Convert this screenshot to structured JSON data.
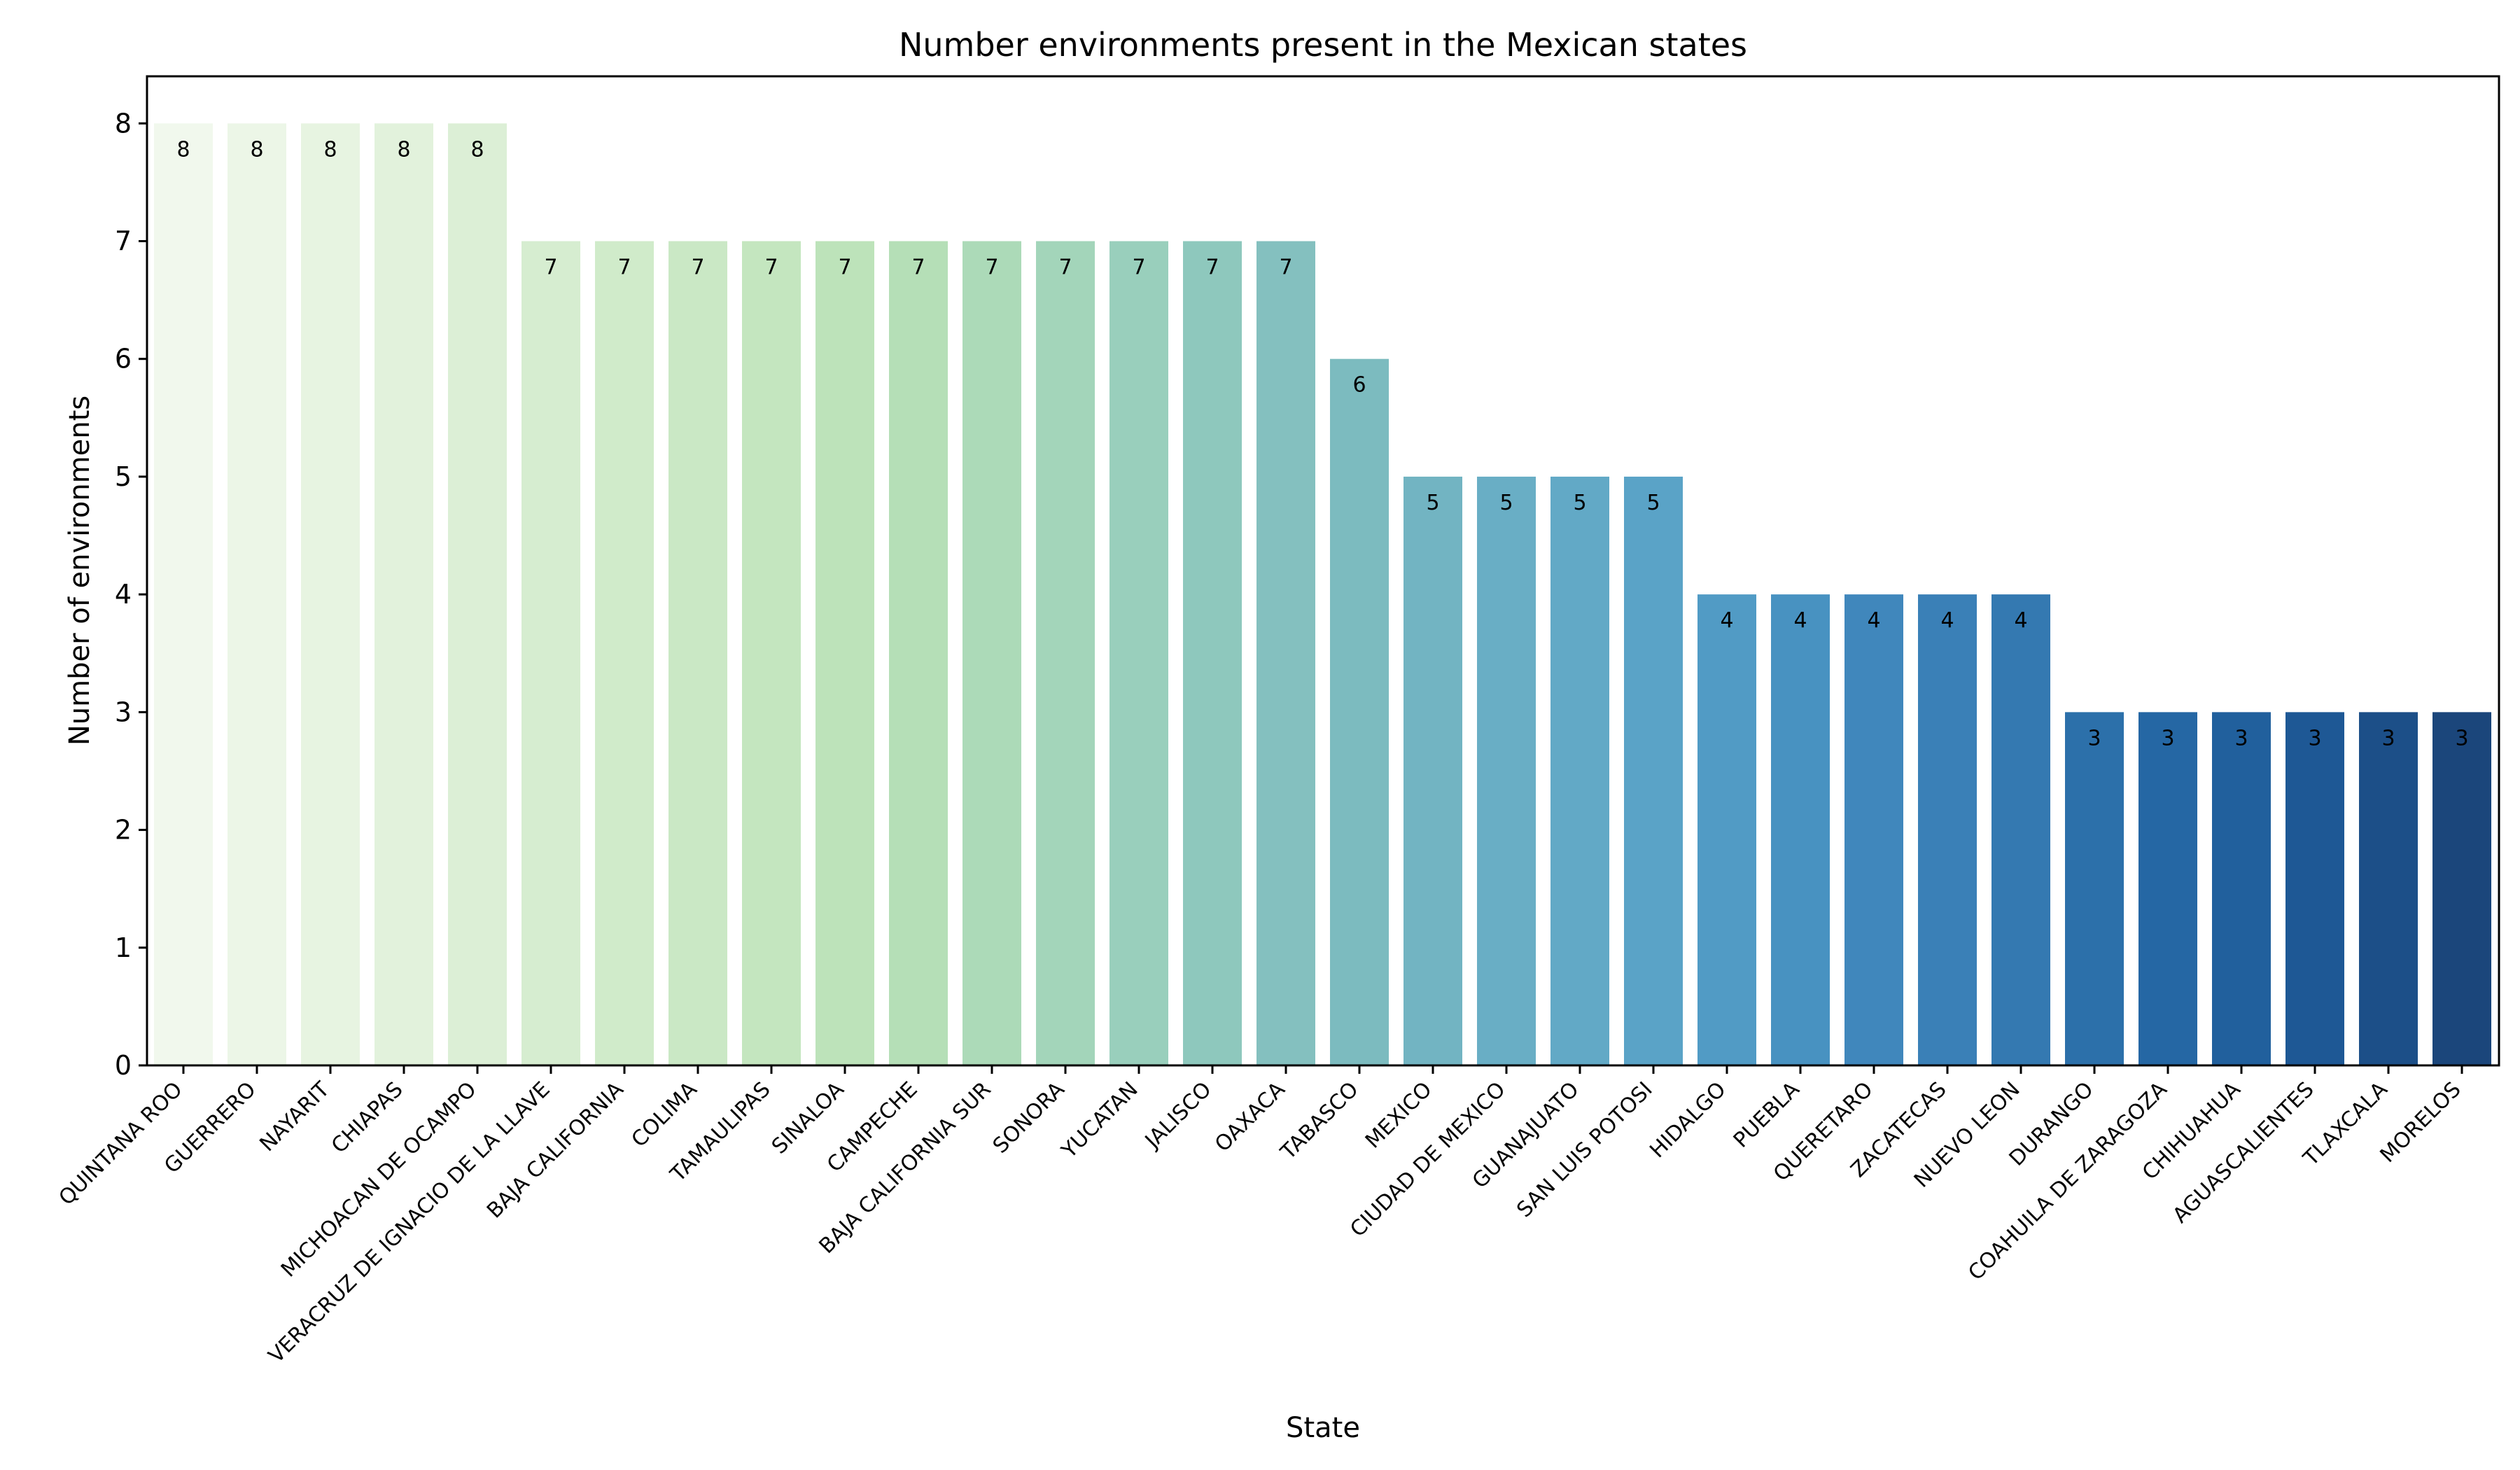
{
  "chart_data": {
    "type": "bar",
    "title": "Number environments present in the Mexican states",
    "xlabel": "State",
    "ylabel": "Number of environments",
    "ylim": [
      0,
      8.4
    ],
    "yticks": [
      0,
      1,
      2,
      3,
      4,
      5,
      6,
      7,
      8
    ],
    "grid": false,
    "legend": "none",
    "categories": [
      "QUINTANA ROO",
      "GUERRERO",
      "NAYARIT",
      "CHIAPAS",
      "MICHOACAN DE OCAMPO",
      "VERACRUZ DE IGNACIO DE LA LLAVE",
      "BAJA CALIFORNIA",
      "COLIMA",
      "TAMAULIPAS",
      "SINALOA",
      "CAMPECHE",
      "BAJA CALIFORNIA SUR",
      "SONORA",
      "YUCATAN",
      "JALISCO",
      "OAXACA",
      "TABASCO",
      "MEXICO",
      "CIUDAD DE MEXICO",
      "GUANAJUATO",
      "SAN LUIS POTOSI",
      "HIDALGO",
      "PUEBLA",
      "QUERETARO",
      "ZACATECAS",
      "NUEVO LEON",
      "DURANGO",
      "COAHUILA DE ZARAGOZA",
      "CHIHUAHUA",
      "AGUASCALIENTES",
      "TLAXCALA",
      "MORELOS"
    ],
    "values": [
      8,
      8,
      8,
      8,
      8,
      7,
      7,
      7,
      7,
      7,
      7,
      7,
      7,
      7,
      7,
      7,
      6,
      5,
      5,
      5,
      5,
      4,
      4,
      4,
      4,
      4,
      3,
      3,
      3,
      3,
      3,
      3
    ],
    "data_labels": [
      "8",
      "8",
      "8",
      "8",
      "8",
      "7",
      "7",
      "7",
      "7",
      "7",
      "7",
      "7",
      "7",
      "7",
      "7",
      "7",
      "6",
      "5",
      "5",
      "5",
      "5",
      "4",
      "4",
      "4",
      "4",
      "4",
      "3",
      "3",
      "3",
      "3",
      "3",
      "3"
    ],
    "colors": [
      "#f1f8ed",
      "#ecf6e7",
      "#e7f4e1",
      "#e2f2dc",
      "#dcefd6",
      "#d6edd0",
      "#d0ebca",
      "#cae8c5",
      "#c4e6bf",
      "#bde3ba",
      "#b5dfb7",
      "#acdab8",
      "#a3d5ba",
      "#99cfbc",
      "#8ec8bd",
      "#84c0bf",
      "#7cbbbf",
      "#72b4c2",
      "#69aec5",
      "#62a9c6",
      "#5aa3c7",
      "#519bc5",
      "#4892c1",
      "#4087bc",
      "#3a80b7",
      "#3479b1",
      "#2c70aa",
      "#2567a4",
      "#21609d",
      "#1e5895",
      "#1c4f88",
      "#1b467b"
    ]
  }
}
